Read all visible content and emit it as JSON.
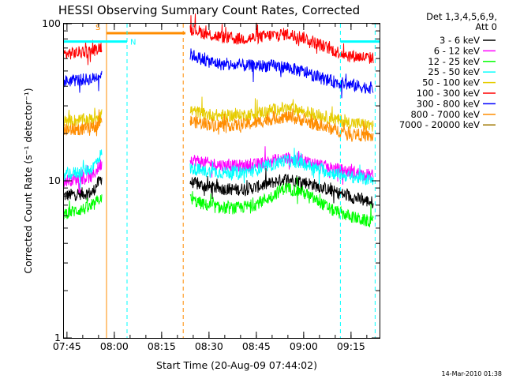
{
  "chart_data": {
    "type": "line",
    "title": "HESSI Observing Summary Count Rates, Corrected",
    "xlabel": "Start Time (20-Aug-09 07:44:02)",
    "ylabel": "Corrected Count Rate (s⁻¹ detector⁻¹)",
    "yscale": "log",
    "ylim": [
      1,
      100
    ],
    "xlim_minutes_after_0744": [
      0,
      100
    ],
    "x_tick_labels": [
      "07:45",
      "08:00",
      "08:15",
      "08:30",
      "08:45",
      "09:00",
      "09:15"
    ],
    "x_tick_times": [
      "07:45",
      "08:00",
      "08:15",
      "08:30",
      "08:45",
      "09:00",
      "09:15"
    ],
    "y_tick_labels": [
      "1",
      "10",
      "100"
    ],
    "legend": {
      "header_line1": "Det 1,3,4,5,6,9,",
      "header_line2": "Att 0",
      "placement": "right-outside"
    },
    "series": [
      {
        "name": "3 - 6 keV",
        "color": "#000000",
        "segments": [
          {
            "x": [
              0,
              3,
              6,
              9,
              12
            ],
            "y": [
              8.0,
              8.2,
              8.3,
              8.4,
              10.5
            ]
          },
          {
            "x": [
              40,
              45,
              50,
              55,
              60,
              65,
              70,
              75,
              80,
              85,
              90,
              95,
              98
            ],
            "y": [
              9.8,
              9.2,
              8.9,
              8.8,
              9.0,
              9.6,
              10.3,
              10.0,
              9.3,
              8.6,
              8.0,
              7.5,
              7.3
            ]
          }
        ]
      },
      {
        "name": "6 - 12 keV",
        "color": "#ff00ff",
        "segments": [
          {
            "x": [
              0,
              3,
              6,
              9,
              12
            ],
            "y": [
              10.0,
              10.2,
              10.4,
              10.6,
              13.0
            ]
          },
          {
            "x": [
              40,
              45,
              50,
              55,
              60,
              65,
              70,
              75,
              80,
              85,
              90,
              95,
              98
            ],
            "y": [
              13.8,
              13.0,
              12.6,
              12.4,
              12.6,
              13.3,
              14.0,
              13.6,
              12.8,
              12.0,
              11.5,
              11.0,
              10.8
            ]
          }
        ]
      },
      {
        "name": "12 - 25 keV",
        "color": "#00ff00",
        "segments": [
          {
            "x": [
              0,
              3,
              6,
              9,
              12
            ],
            "y": [
              6.2,
              6.4,
              6.6,
              6.8,
              8.0
            ]
          },
          {
            "x": [
              40,
              45,
              50,
              55,
              60,
              65,
              70,
              75,
              80,
              85,
              90,
              95,
              98
            ],
            "y": [
              7.6,
              7.0,
              6.7,
              6.7,
              7.0,
              7.8,
              9.0,
              8.6,
              7.5,
              6.5,
              6.0,
              5.6,
              5.5
            ]
          }
        ]
      },
      {
        "name": "25 - 50 keV",
        "color": "#00ffff",
        "segments": [
          {
            "x": [
              0,
              3,
              6,
              9,
              12
            ],
            "y": [
              11.0,
              11.2,
              11.5,
              12.0,
              15.0
            ]
          },
          {
            "x": [
              40,
              45,
              50,
              55,
              60,
              65,
              70,
              75,
              80,
              85,
              90,
              95,
              98
            ],
            "y": [
              12.0,
              11.5,
              11.3,
              11.3,
              11.6,
              12.5,
              13.5,
              13.0,
              12.0,
              11.2,
              10.7,
              10.3,
              10.1
            ]
          }
        ]
      },
      {
        "name": "50 - 100 keV",
        "color": "#e6cc00",
        "segments": [
          {
            "x": [
              0,
              3,
              6,
              9,
              12
            ],
            "y": [
              24.0,
              24.2,
              24.4,
              24.6,
              27.0
            ]
          },
          {
            "x": [
              40,
              45,
              50,
              55,
              60,
              65,
              70,
              75,
              80,
              85,
              90,
              95,
              98
            ],
            "y": [
              28.0,
              26.5,
              26.0,
              26.0,
              26.6,
              28.0,
              29.0,
              28.0,
              26.5,
              24.8,
              23.6,
              22.8,
              22.5
            ]
          }
        ]
      },
      {
        "name": "100 - 300 keV",
        "color": "#ff0000",
        "segments": [
          {
            "x": [
              0,
              3,
              6,
              9,
              12
            ],
            "y": [
              64.0,
              65.0,
              66.0,
              67.0,
              72.0
            ]
          },
          {
            "x": [
              40,
              45,
              50,
              55,
              60,
              65,
              70,
              75,
              80,
              85,
              90,
              95,
              98
            ],
            "y": [
              94.0,
              86.0,
              82.0,
              80.0,
              81.0,
              84.0,
              86.0,
              83.0,
              75.0,
              68.0,
              63.0,
              61.0,
              60.0
            ]
          }
        ]
      },
      {
        "name": "300 - 800 keV",
        "color": "#0000ff",
        "segments": [
          {
            "x": [
              0,
              3,
              6,
              9,
              12
            ],
            "y": [
              43.0,
              43.5,
              44.0,
              44.5,
              48.0
            ]
          },
          {
            "x": [
              40,
              45,
              50,
              55,
              60,
              65,
              70,
              75,
              80,
              85,
              90,
              95,
              98
            ],
            "y": [
              64.0,
              58.0,
              55.0,
              54.0,
              54.0,
              54.0,
              53.0,
              50.0,
              46.0,
              43.0,
              41.0,
              39.5,
              39.0
            ]
          }
        ]
      },
      {
        "name": "800 - 7000 keV",
        "color": "#ff8c00",
        "segments": [
          {
            "x": [
              0,
              3,
              6,
              9,
              12
            ],
            "y": [
              21.0,
              21.2,
              21.4,
              21.6,
              24.0
            ]
          },
          {
            "x": [
              40,
              45,
              50,
              55,
              60,
              65,
              70,
              75,
              80,
              85,
              90,
              95,
              98
            ],
            "y": [
              24.0,
              23.0,
              22.6,
              22.6,
              23.2,
              24.6,
              25.5,
              24.5,
              22.8,
              21.3,
              20.2,
              19.4,
              19.0
            ]
          }
        ]
      },
      {
        "name": "7000 - 20000 keV",
        "color": "#a07800",
        "segments": []
      }
    ],
    "flags": {
      "saa": {
        "label": "S",
        "color": "#ff8c00",
        "start": 13.5,
        "end": 38.5,
        "level": 87,
        "edge_lines": [
          13.5,
          37.8
        ]
      },
      "night": {
        "label": "N",
        "color": "#00ffff",
        "start": 0,
        "end": 20,
        "level": 77,
        "start2": 87.6,
        "end2": 100,
        "edge_lines": [
          20.0,
          87.6,
          98.6
        ]
      }
    }
  },
  "footer_stamp": "14-Mar-2010 01:38"
}
